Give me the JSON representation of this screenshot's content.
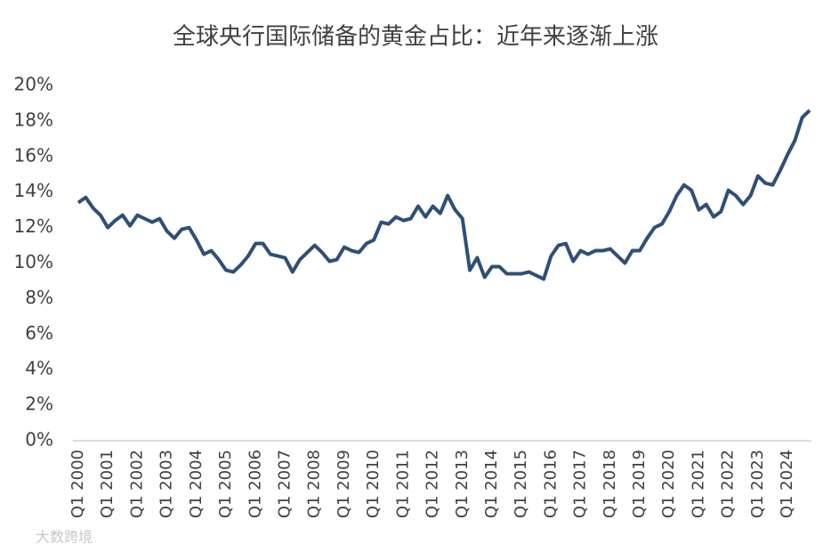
{
  "chart_data": {
    "type": "line",
    "title": "全球央行国际储备的黄金占比：近年来逐渐上涨",
    "watermark": "大数跨境",
    "categories": [
      "Q1 2000",
      null,
      null,
      null,
      "Q1 2001",
      null,
      null,
      null,
      "Q1 2002",
      null,
      null,
      null,
      "Q1 2003",
      null,
      null,
      null,
      "Q1 2004",
      null,
      null,
      null,
      "Q1 2005",
      null,
      null,
      null,
      "Q1 2006",
      null,
      null,
      null,
      "Q1 2007",
      null,
      null,
      null,
      "Q1 2008",
      null,
      null,
      null,
      "Q1 2009",
      null,
      null,
      null,
      "Q1 2010",
      null,
      null,
      null,
      "Q1 2011",
      null,
      null,
      null,
      "Q1 2012",
      null,
      null,
      null,
      "Q1 2013",
      null,
      null,
      null,
      "Q1 2014",
      null,
      null,
      null,
      "Q1 2015",
      null,
      null,
      null,
      "Q1 2016",
      null,
      null,
      null,
      "Q1 2017",
      null,
      null,
      null,
      "Q1 2018",
      null,
      null,
      null,
      "Q1 2019",
      null,
      null,
      null,
      "Q1 2020",
      null,
      null,
      null,
      "Q1 2021",
      null,
      null,
      null,
      "Q1 2022",
      null,
      null,
      null,
      "Q1 2023",
      null,
      null,
      null,
      "Q1 2024",
      null,
      null,
      null
    ],
    "series": [
      {
        "color": "#2e5077",
        "values": [
          13.4,
          13.7,
          13.1,
          12.7,
          12.0,
          12.4,
          12.7,
          12.1,
          12.7,
          12.5,
          12.3,
          12.5,
          11.8,
          11.4,
          11.9,
          12.0,
          11.3,
          10.5,
          10.7,
          10.2,
          9.6,
          9.5,
          9.9,
          10.4,
          11.1,
          11.1,
          10.5,
          10.4,
          10.3,
          9.5,
          10.2,
          10.6,
          11.0,
          10.6,
          10.1,
          10.2,
          10.9,
          10.7,
          10.6,
          11.1,
          11.3,
          12.3,
          12.2,
          12.6,
          12.4,
          12.5,
          13.2,
          12.6,
          13.2,
          12.8,
          13.8,
          13.0,
          12.5,
          9.6,
          10.3,
          9.2,
          9.8,
          9.8,
          9.4,
          9.4,
          9.4,
          9.5,
          9.3,
          9.1,
          10.4,
          11.0,
          11.1,
          10.1,
          10.7,
          10.5,
          10.7,
          10.7,
          10.8,
          10.4,
          10.0,
          10.7,
          10.7,
          11.4,
          12.0,
          12.2,
          12.9,
          13.8,
          14.4,
          14.1,
          13.0,
          13.3,
          12.6,
          12.9,
          14.1,
          13.8,
          13.3,
          13.8,
          14.9,
          14.5,
          14.4,
          15.2,
          16.1,
          16.9,
          18.2,
          18.6
        ]
      }
    ],
    "ylim": [
      0,
      20
    ],
    "yticks": [
      {
        "value": 0,
        "label": "0%"
      },
      {
        "value": 2,
        "label": "2%"
      },
      {
        "value": 4,
        "label": "4%"
      },
      {
        "value": 6,
        "label": "6%"
      },
      {
        "value": 8,
        "label": "8%"
      },
      {
        "value": 10,
        "label": "10%"
      },
      {
        "value": 12,
        "label": "12%"
      },
      {
        "value": 14,
        "label": "14%"
      },
      {
        "value": 16,
        "label": "16%"
      },
      {
        "value": 18,
        "label": "18%"
      },
      {
        "value": 20,
        "label": "20%"
      }
    ],
    "grid": false
  }
}
